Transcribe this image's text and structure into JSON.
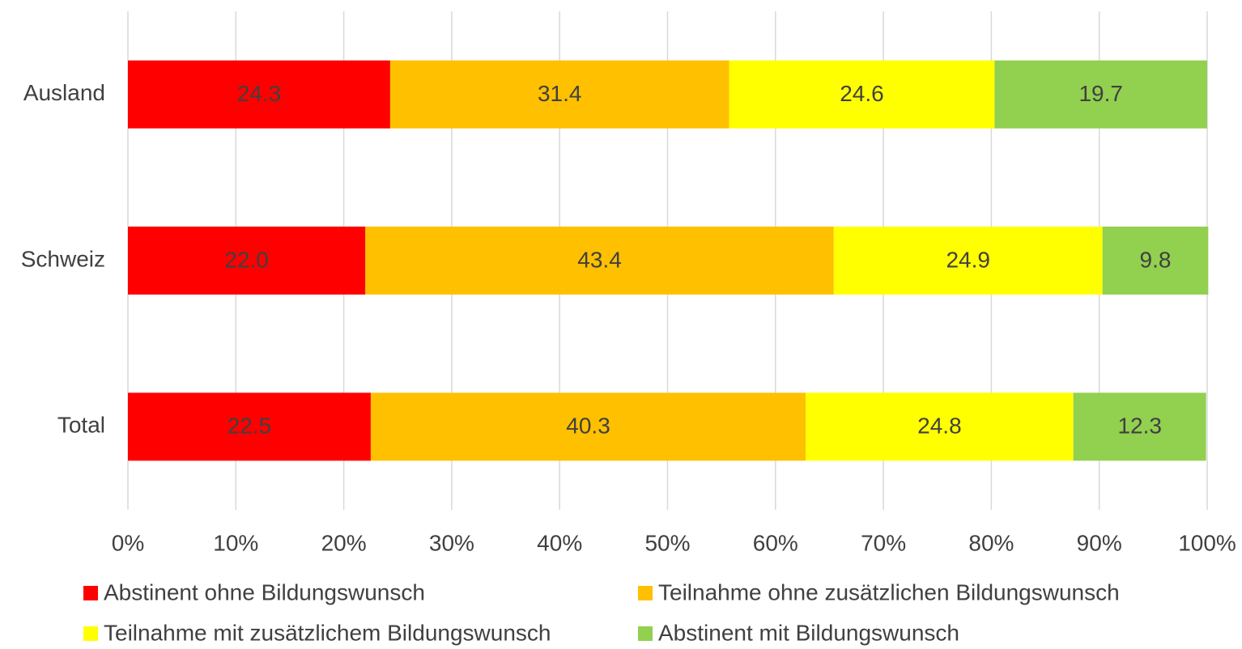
{
  "chart_data": {
    "type": "stacked-bar-horizontal",
    "categories": [
      "Ausland",
      "Schweiz",
      "Total"
    ],
    "series": [
      {
        "name": "Abstinent ohne Bildungswunsch",
        "color": "#ff0000",
        "values": [
          24.3,
          22.0,
          22.5
        ],
        "value_labels": [
          "24.3",
          "22.0",
          "22.5"
        ]
      },
      {
        "name": "Teilnahme ohne zusätzlichen Bildungswunsch",
        "color": "#ffc000",
        "values": [
          31.4,
          43.4,
          40.3
        ]
      },
      {
        "name": "Teilnahme mit zusätzlichem Bildungswunsch",
        "color": "#ffff00",
        "values": [
          24.6,
          24.9,
          24.8
        ]
      },
      {
        "name": "Abstinent mit Bildungswunsch",
        "color": "#92d050",
        "values": [
          19.7,
          9.8,
          12.3
        ]
      }
    ],
    "xlim": [
      0,
      100
    ],
    "xticks": [
      {
        "value": 0,
        "label": "0%"
      },
      {
        "value": 10,
        "label": "10%"
      },
      {
        "value": 20,
        "label": "20%"
      },
      {
        "value": 30,
        "label": "30%"
      },
      {
        "value": 40,
        "label": "40%"
      },
      {
        "value": 50,
        "label": "50%"
      },
      {
        "value": 60,
        "label": "60%"
      },
      {
        "value": 70,
        "label": "70%"
      },
      {
        "value": 80,
        "label": "80%"
      },
      {
        "value": 90,
        "label": "90%"
      },
      {
        "value": 100,
        "label": "100%"
      }
    ],
    "grid": true
  }
}
